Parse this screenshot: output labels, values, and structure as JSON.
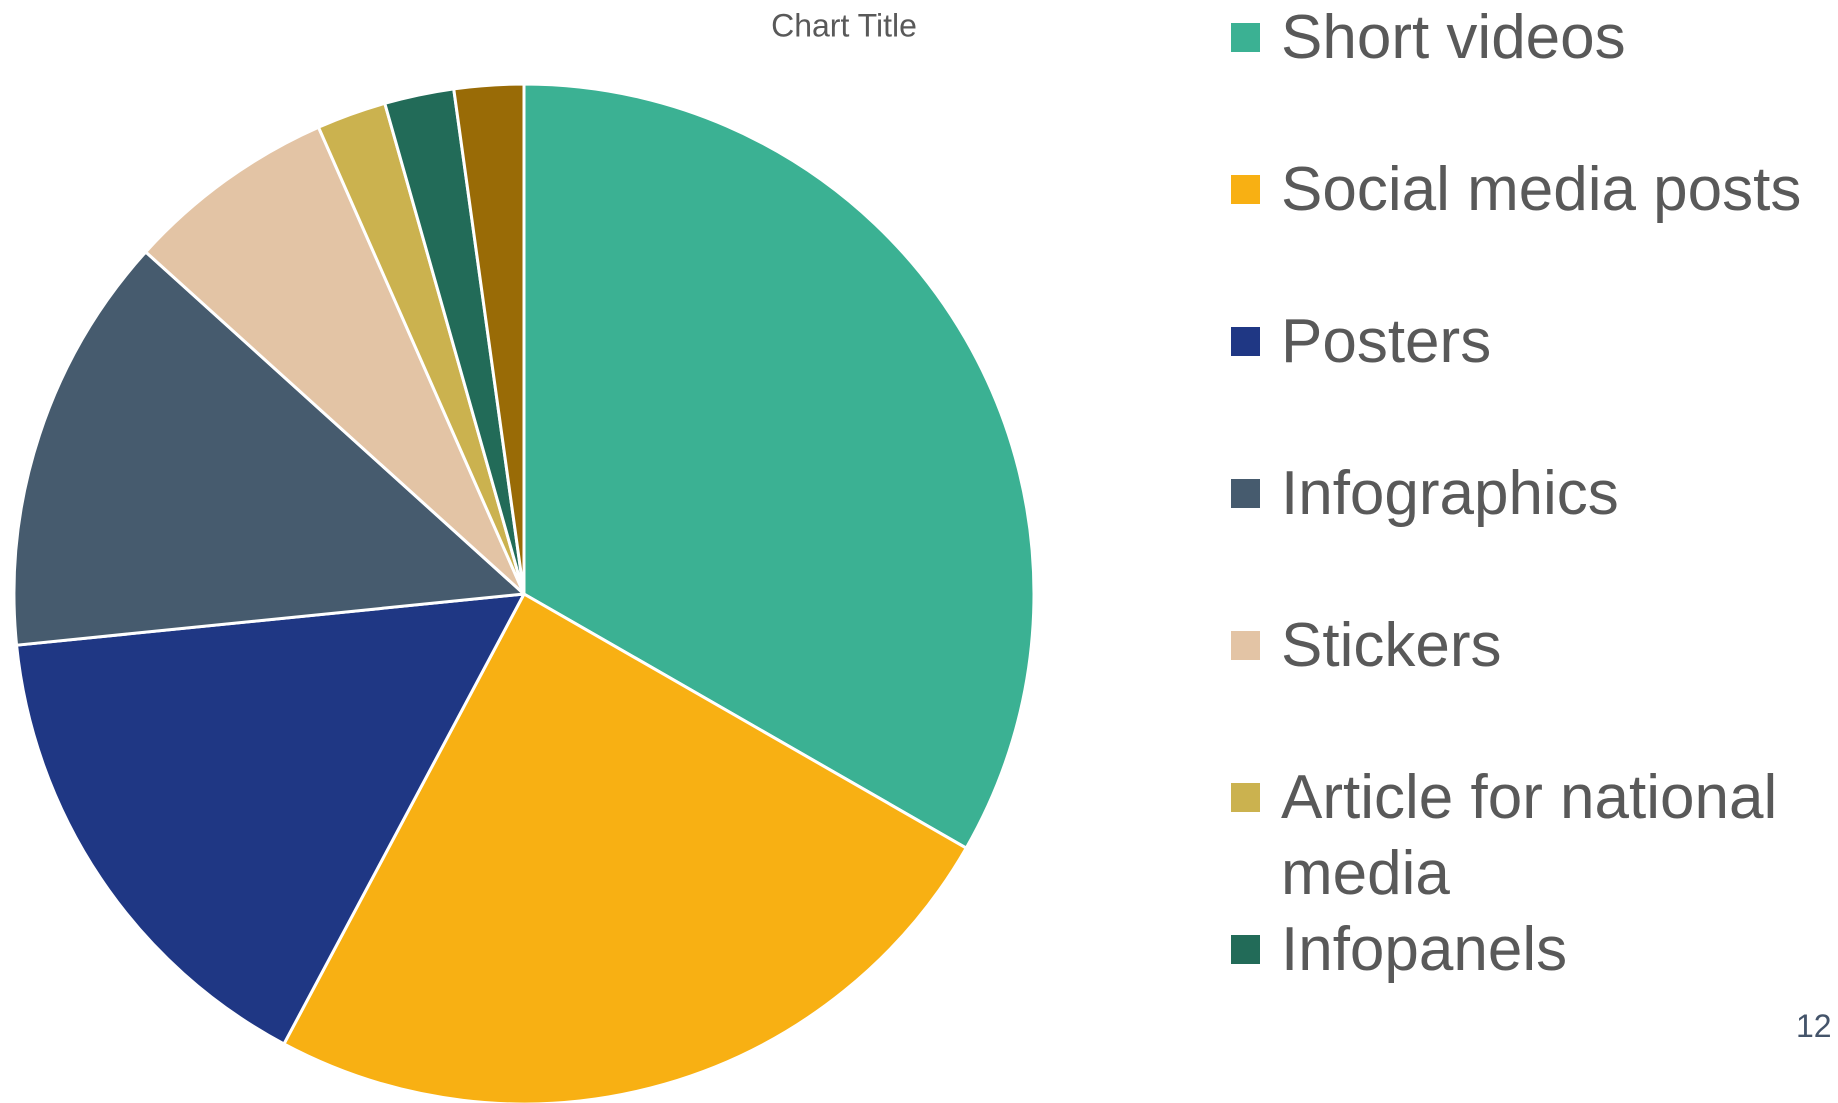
{
  "chart_data": {
    "type": "pie",
    "title": "Chart Title",
    "categories": [
      "Short videos",
      "Social media posts",
      "Posters",
      "Infographics",
      "Stickers",
      "Article for national media",
      "Infopanels",
      null
    ],
    "values": [
      33.3,
      24.5,
      15.6,
      13.3,
      6.7,
      2.2,
      2.2,
      2.2
    ],
    "colors": [
      "#3bb193",
      "#f8b013",
      "#1f3784",
      "#465b6e",
      "#e3c4a5",
      "#cbb24f",
      "#226b58",
      "#996b06"
    ],
    "legend": "right"
  },
  "page_number": "12"
}
